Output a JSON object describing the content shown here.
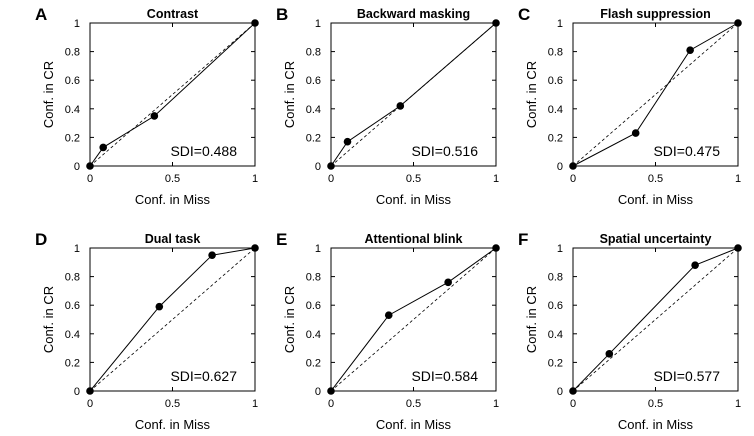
{
  "chart_data": [
    {
      "type": "line",
      "panel": "A",
      "title": "Contrast",
      "xlabel": "Conf. in Miss",
      "ylabel": "Conf. in CR",
      "xlim": [
        0,
        1
      ],
      "ylim": [
        0,
        1
      ],
      "xticks": [
        "0",
        "0.5",
        "1"
      ],
      "yticks": [
        "0",
        "0.2",
        "0.4",
        "0.6",
        "0.8",
        "1"
      ],
      "x": [
        0,
        0.08,
        0.39,
        1
      ],
      "y": [
        0,
        0.13,
        0.35,
        1
      ],
      "annotation": "SDI=0.488"
    },
    {
      "type": "line",
      "panel": "B",
      "title": "Backward masking",
      "xlabel": "Conf. in Miss",
      "ylabel": "Conf. in CR",
      "xlim": [
        0,
        1
      ],
      "ylim": [
        0,
        1
      ],
      "xticks": [
        "0",
        "0.5",
        "1"
      ],
      "yticks": [
        "0",
        "0.2",
        "0.4",
        "0.6",
        "0.8",
        "1"
      ],
      "x": [
        0,
        0.1,
        0.42,
        1
      ],
      "y": [
        0,
        0.17,
        0.42,
        1
      ],
      "annotation": "SDI=0.516"
    },
    {
      "type": "line",
      "panel": "C",
      "title": "Flash suppression",
      "xlabel": "Conf. in Miss",
      "ylabel": "Conf. in CR",
      "xlim": [
        0,
        1
      ],
      "ylim": [
        0,
        1
      ],
      "xticks": [
        "0",
        "0.5",
        "1"
      ],
      "yticks": [
        "0",
        "0.2",
        "0.4",
        "0.6",
        "0.8",
        "1"
      ],
      "x": [
        0,
        0.38,
        0.71,
        1
      ],
      "y": [
        0,
        0.23,
        0.81,
        1
      ],
      "annotation": "SDI=0.475"
    },
    {
      "type": "line",
      "panel": "D",
      "title": "Dual task",
      "xlabel": "Conf. in Miss",
      "ylabel": "Conf. in CR",
      "xlim": [
        0,
        1
      ],
      "ylim": [
        0,
        1
      ],
      "xticks": [
        "0",
        "0.5",
        "1"
      ],
      "yticks": [
        "0",
        "0.2",
        "0.4",
        "0.6",
        "0.8",
        "1"
      ],
      "x": [
        0,
        0.42,
        0.74,
        1
      ],
      "y": [
        0,
        0.59,
        0.95,
        1
      ],
      "annotation": "SDI=0.627"
    },
    {
      "type": "line",
      "panel": "E",
      "title": "Attentional blink",
      "xlabel": "Conf. in Miss",
      "ylabel": "Conf. in CR",
      "xlim": [
        0,
        1
      ],
      "ylim": [
        0,
        1
      ],
      "xticks": [
        "0",
        "0.5",
        "1"
      ],
      "yticks": [
        "0",
        "0.2",
        "0.4",
        "0.6",
        "0.8",
        "1"
      ],
      "x": [
        0,
        0.35,
        0.71,
        1
      ],
      "y": [
        0,
        0.53,
        0.76,
        1
      ],
      "annotation": "SDI=0.584"
    },
    {
      "type": "line",
      "panel": "F",
      "title": "Spatial uncertainty",
      "xlabel": "Conf. in Miss",
      "ylabel": "Conf. in CR",
      "xlim": [
        0,
        1
      ],
      "ylim": [
        0,
        1
      ],
      "xticks": [
        "0",
        "0.5",
        "1"
      ],
      "yticks": [
        "0",
        "0.2",
        "0.4",
        "0.6",
        "0.8",
        "1"
      ],
      "x": [
        0,
        0.22,
        0.74,
        1
      ],
      "y": [
        0,
        0.26,
        0.88,
        1
      ],
      "annotation": "SDI=0.577"
    }
  ]
}
